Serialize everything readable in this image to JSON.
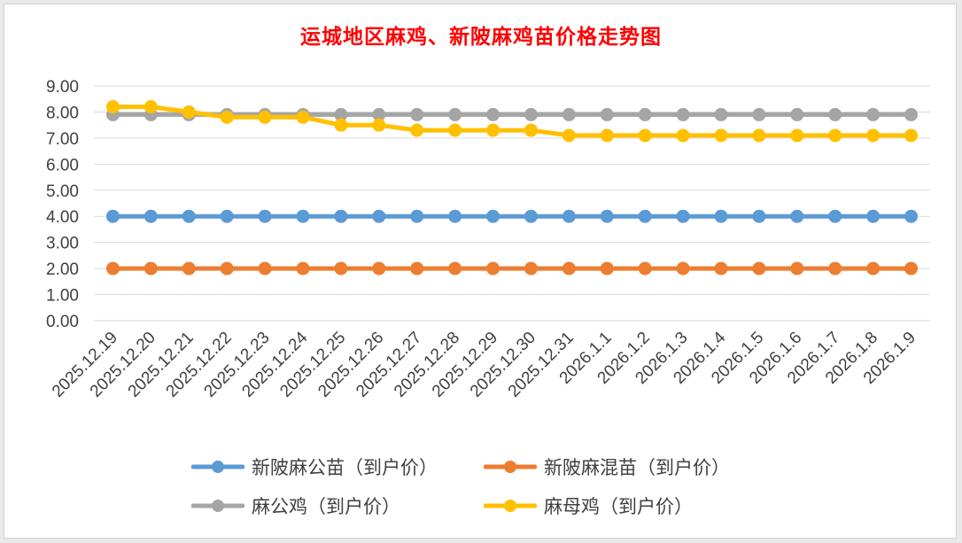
{
  "chart_data": {
    "type": "line",
    "title": "运城地区麻鸡、新陂麻鸡苗价格走势图",
    "xlabel": "",
    "ylabel": "",
    "ylim": [
      0,
      9
    ],
    "yticks": [
      "0.00",
      "1.00",
      "2.00",
      "3.00",
      "4.00",
      "5.00",
      "6.00",
      "7.00",
      "8.00",
      "9.00"
    ],
    "grid": true,
    "legend_position": "bottom",
    "categories": [
      "2025.12.19",
      "2025.12.20",
      "2025.12.21",
      "2025.12.22",
      "2025.12.23",
      "2025.12.24",
      "2025.12.25",
      "2025.12.26",
      "2025.12.27",
      "2025.12.28",
      "2025.12.29",
      "2025.12.30",
      "2025.12.31",
      "2026.1.1",
      "2026.1.2",
      "2026.1.3",
      "2026.1.4",
      "2026.1.5",
      "2026.1.6",
      "2026.1.7",
      "2026.1.8",
      "2026.1.9"
    ],
    "series": [
      {
        "name": "新陂麻公苗（到户价）",
        "color": "#5b9bd5",
        "values": [
          4,
          4,
          4,
          4,
          4,
          4,
          4,
          4,
          4,
          4,
          4,
          4,
          4,
          4,
          4,
          4,
          4,
          4,
          4,
          4,
          4,
          4
        ]
      },
      {
        "name": "新陂麻混苗（到户价）",
        "color": "#ed7d31",
        "values": [
          2,
          2,
          2,
          2,
          2,
          2,
          2,
          2,
          2,
          2,
          2,
          2,
          2,
          2,
          2,
          2,
          2,
          2,
          2,
          2,
          2,
          2
        ]
      },
      {
        "name": "麻公鸡（到户价）",
        "color": "#a5a5a5",
        "values": [
          7.9,
          7.9,
          7.9,
          7.9,
          7.9,
          7.9,
          7.9,
          7.9,
          7.9,
          7.9,
          7.9,
          7.9,
          7.9,
          7.9,
          7.9,
          7.9,
          7.9,
          7.9,
          7.9,
          7.9,
          7.9,
          7.9
        ]
      },
      {
        "name": "麻母鸡（到户价）",
        "color": "#ffc000",
        "values": [
          8.2,
          8.2,
          8.0,
          7.8,
          7.8,
          7.8,
          7.5,
          7.5,
          7.3,
          7.3,
          7.3,
          7.3,
          7.1,
          7.1,
          7.1,
          7.1,
          7.1,
          7.1,
          7.1,
          7.1,
          7.1,
          7.1
        ]
      }
    ]
  }
}
